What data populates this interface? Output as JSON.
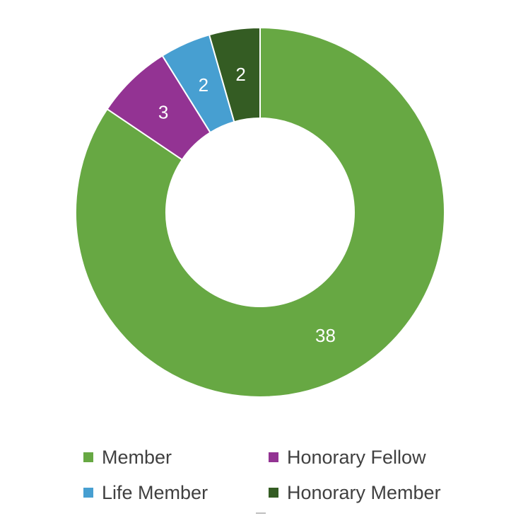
{
  "chart_data": {
    "type": "pie",
    "variant": "donut",
    "title": "",
    "series": [
      {
        "name": "Member",
        "value": 38,
        "color": "#67a843"
      },
      {
        "name": "Honorary Fellow",
        "value": 3,
        "color": "#933393"
      },
      {
        "name": "Life Member",
        "value": 2,
        "color": "#479fd1"
      },
      {
        "name": "Honorary Member",
        "value": 2,
        "color": "#345c23"
      }
    ],
    "data_labels": [
      "38",
      "3",
      "2",
      "2"
    ],
    "legend_position": "bottom"
  },
  "legend": {
    "items": [
      {
        "label": "Member",
        "color": "#67a843"
      },
      {
        "label": "Honorary Fellow",
        "color": "#933393"
      },
      {
        "label": "Life Member",
        "color": "#479fd1"
      },
      {
        "label": "Honorary Member",
        "color": "#345c23"
      }
    ]
  }
}
